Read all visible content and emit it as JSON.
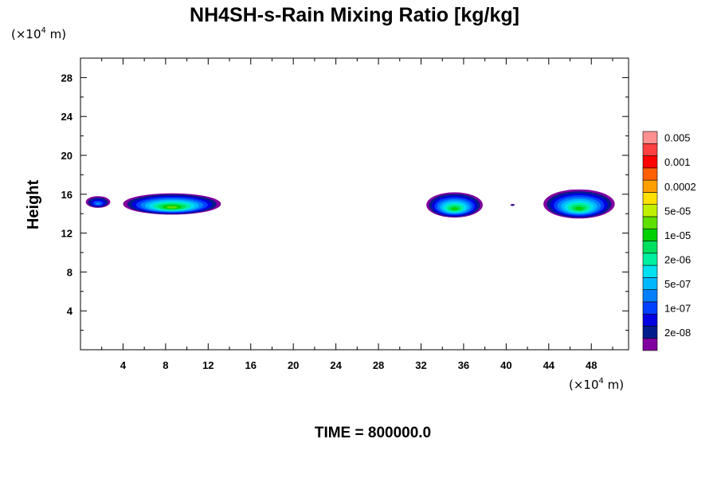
{
  "chart_data": {
    "type": "heatmap",
    "title": "NH4SH-s-Rain Mixing Ratio [kg/kg]",
    "ylabel": "Height",
    "x_scale_label": {
      "prefix": "(×10",
      "exponent": "4",
      "unit": " m)"
    },
    "y_scale_label": {
      "prefix": "(×10",
      "exponent": "4",
      "unit": " m)"
    },
    "xlim": [
      0,
      51.5
    ],
    "ylim": [
      0,
      30
    ],
    "x_major_ticks": [
      4,
      8,
      12,
      16,
      20,
      24,
      28,
      32,
      36,
      40,
      44,
      48
    ],
    "x_tick_labels": [
      "4",
      "8",
      "12",
      "16",
      "20",
      "24",
      "28",
      "32",
      "36",
      "40",
      "44",
      "48"
    ],
    "y_major_ticks": [
      4,
      8,
      12,
      16,
      20,
      24,
      28
    ],
    "y_tick_labels": [
      "4",
      "8",
      "12",
      "16",
      "20",
      "24",
      "28"
    ],
    "time_label": "TIME = 800000.0",
    "colorbar": {
      "colors": [
        "#8000a0",
        "#001c8c",
        "#0000e0",
        "#0040ff",
        "#0080ff",
        "#00b8ff",
        "#00e0f0",
        "#00f0a0",
        "#00e060",
        "#00d000",
        "#60e000",
        "#c0f000",
        "#ffe000",
        "#ffa000",
        "#ff6000",
        "#ff0000",
        "#ff4040",
        "#ff9090"
      ],
      "labels": [
        "2e-08",
        "1e-07",
        "5e-07",
        "2e-06",
        "1e-05",
        "5e-05",
        "0.0002",
        "0.001",
        "0.005"
      ]
    },
    "features": [
      {
        "x": [
          0.5,
          2.8
        ],
        "y": [
          14.6,
          15.8
        ],
        "peak_level": 4
      },
      {
        "x": [
          4.0,
          13.2
        ],
        "y": [
          13.9,
          16.1
        ],
        "peak_level": 10
      },
      {
        "x": [
          32.5,
          37.8
        ],
        "y": [
          13.6,
          16.2
        ],
        "peak_level": 9
      },
      {
        "x": [
          40.4,
          40.8
        ],
        "y": [
          14.8,
          15.0
        ],
        "peak_level": 1
      },
      {
        "x": [
          43.5,
          50.2
        ],
        "y": [
          13.5,
          16.5
        ],
        "peak_level": 9
      }
    ]
  }
}
